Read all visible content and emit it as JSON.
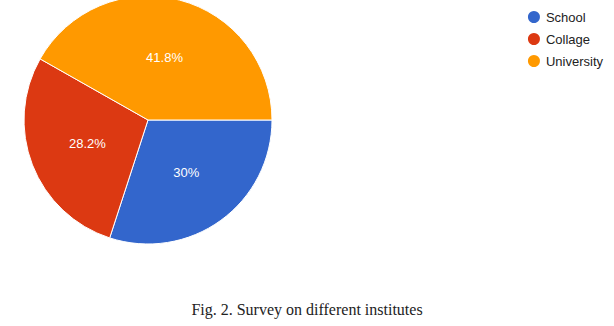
{
  "chart_data": {
    "type": "pie",
    "title": "Fig. 2. Survey on different institutes",
    "categories": [
      "School",
      "Collage",
      "University"
    ],
    "values": [
      30,
      28.2,
      41.8
    ],
    "value_labels": [
      "30%",
      "28.2%",
      "41.8%"
    ],
    "colors": [
      "#3366cc",
      "#dc3912",
      "#ff9900"
    ],
    "data_labels": true,
    "legend": "top-right"
  }
}
